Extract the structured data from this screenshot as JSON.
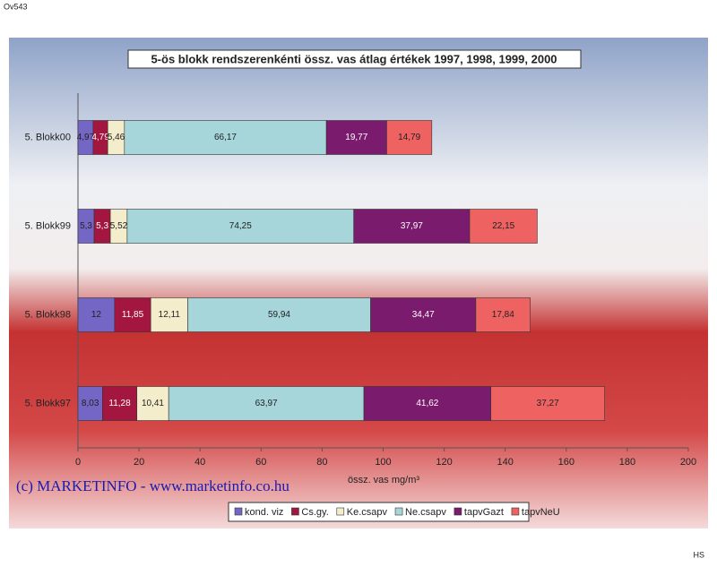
{
  "page": {
    "corner_label": "Ov543",
    "footer_mark": "HS",
    "watermark": "(c) MARKETINFO - www.marketinfo.co.hu"
  },
  "chart_data": {
    "type": "stacked-barh",
    "title": "5-ös blokk rendszerenkénti össz. vas átlag értékek  1997, 1998, 1999, 2000",
    "x_label": "össz. vas mg/m³",
    "categories": [
      "5. Blokk00",
      "5. Blokk99",
      "5. Blokk98",
      "5. Blokk97"
    ],
    "series": [
      {
        "name": "kond. viz",
        "color": "#7466c4",
        "values": [
          4.97,
          5.3,
          12,
          8.03
        ],
        "value_labels": [
          "4,97",
          "5,3",
          "12",
          "8,03"
        ]
      },
      {
        "name": "Cs.gy.",
        "color": "#a3163f",
        "values": [
          4.79,
          5.3,
          11.85,
          11.28
        ],
        "value_labels": [
          "4,79",
          "5,3",
          "11,85",
          "11,28"
        ]
      },
      {
        "name": "Ke.csapv",
        "color": "#f4edcc",
        "values": [
          5.46,
          5.52,
          12.11,
          10.41
        ],
        "value_labels": [
          "5,46",
          "5,52",
          "12,11",
          "10,41"
        ]
      },
      {
        "name": "Ne.csapv",
        "color": "#a6d6da",
        "values": [
          66.17,
          74.25,
          59.94,
          63.97
        ],
        "value_labels": [
          "66,17",
          "74,25",
          "59,94",
          "63,97"
        ]
      },
      {
        "name": "tapvGazt",
        "color": "#7a1b6e",
        "values": [
          19.77,
          37.97,
          34.47,
          41.62
        ],
        "value_labels": [
          "19,77",
          "37,97",
          "34,47",
          "41,62"
        ]
      },
      {
        "name": "tapvNeU",
        "color": "#ee6262",
        "values": [
          14.79,
          22.15,
          17.84,
          37.27
        ],
        "value_labels": [
          "14,79",
          "22,15",
          "17,84",
          "37,27"
        ]
      }
    ],
    "xlim": [
      0,
      200
    ],
    "xticks": [
      0,
      20,
      40,
      60,
      80,
      100,
      120,
      140,
      160,
      180,
      200
    ],
    "grid": false,
    "legend": "bottom"
  }
}
